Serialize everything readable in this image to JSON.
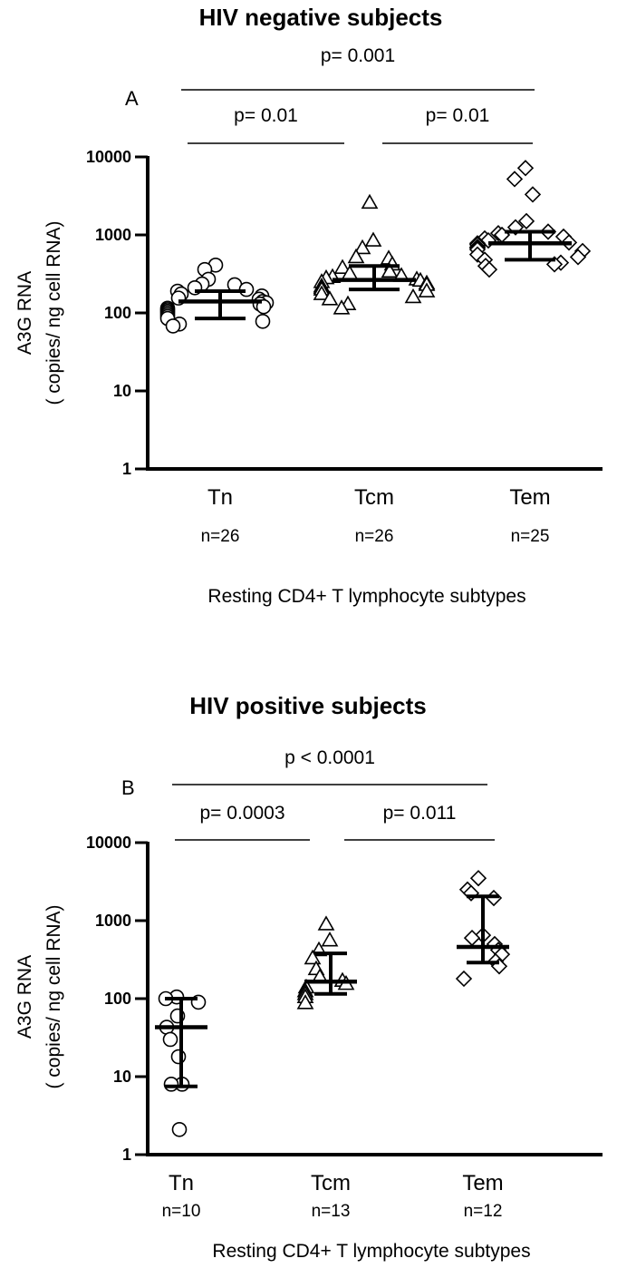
{
  "chart_data": [
    {
      "type": "scatter",
      "panel_label": "A",
      "title": "HIV negative subjects",
      "ylabel_line1": "A3G RNA",
      "ylabel_line2": "( copies/ ng cell RNA)",
      "xlabel": "Resting CD4+ T lymphocyte subtypes",
      "yscale": "log",
      "ylim": [
        1,
        10000
      ],
      "yticks": [
        "1",
        "10",
        "100",
        "1000",
        "10000"
      ],
      "categories": [
        "Tn",
        "Tcm",
        "Tem"
      ],
      "n_labels": [
        "n=26",
        "n=26",
        "n=25"
      ],
      "comparisons": [
        {
          "from": 0,
          "to": 2,
          "label": "p= 0.001"
        },
        {
          "from": 0,
          "to": 1,
          "label": "p= 0.01"
        },
        {
          "from": 1,
          "to": 2,
          "label": "p= 0.01"
        }
      ],
      "series": [
        {
          "category": "Tn",
          "marker": "circle",
          "median": 140,
          "q1": 85,
          "q3": 190,
          "values": [
            410,
            360,
            270,
            235,
            230,
            210,
            200,
            190,
            175,
            165,
            155,
            150,
            140,
            135,
            130,
            120,
            115,
            110,
            105,
            100,
            95,
            90,
            85,
            78,
            72,
            68
          ]
        },
        {
          "category": "Tcm",
          "marker": "triangle",
          "median": 265,
          "q1": 200,
          "q3": 400,
          "values": [
            2600,
            850,
            680,
            520,
            500,
            420,
            380,
            340,
            320,
            300,
            290,
            280,
            270,
            260,
            250,
            240,
            230,
            220,
            210,
            200,
            190,
            175,
            160,
            150,
            130,
            115
          ]
        },
        {
          "category": "Tem",
          "marker": "diamond",
          "median": 780,
          "q1": 480,
          "q3": 1100,
          "values": [
            7200,
            5200,
            3300,
            1500,
            1250,
            1100,
            1050,
            1000,
            950,
            900,
            850,
            800,
            780,
            750,
            700,
            680,
            650,
            620,
            560,
            520,
            480,
            440,
            420,
            400,
            360
          ]
        }
      ]
    },
    {
      "type": "scatter",
      "panel_label": "B",
      "title": "HIV positive subjects",
      "ylabel_line1": "A3G RNA",
      "ylabel_line2": "( copies/ ng cell RNA)",
      "xlabel": "Resting CD4+ T lymphocyte subtypes",
      "yscale": "log",
      "ylim": [
        1,
        10000
      ],
      "yticks": [
        "1",
        "10",
        "100",
        "1000",
        "10000"
      ],
      "categories": [
        "Tn",
        "Tcm",
        "Tem"
      ],
      "n_labels": [
        "n=10",
        "n=13",
        "n=12"
      ],
      "comparisons": [
        {
          "from": 0,
          "to": 2,
          "label": "p < 0.0001"
        },
        {
          "from": 0,
          "to": 1,
          "label": "p= 0.0003"
        },
        {
          "from": 1,
          "to": 2,
          "label": "p= 0.011"
        }
      ],
      "series": [
        {
          "category": "Tn",
          "marker": "circle",
          "median": 43,
          "q1": 7.5,
          "q3": 100,
          "values": [
            105,
            100,
            90,
            60,
            43,
            30,
            18,
            8,
            8,
            2.1
          ]
        },
        {
          "category": "Tcm",
          "marker": "triangle",
          "median": 165,
          "q1": 115,
          "q3": 380,
          "values": [
            900,
            560,
            420,
            330,
            240,
            190,
            170,
            155,
            140,
            125,
            115,
            105,
            88
          ]
        },
        {
          "category": "Tem",
          "marker": "diamond",
          "median": 460,
          "q1": 290,
          "q3": 2050,
          "values": [
            3500,
            2500,
            2250,
            1950,
            650,
            600,
            500,
            420,
            370,
            300,
            260,
            180
          ]
        }
      ]
    }
  ]
}
